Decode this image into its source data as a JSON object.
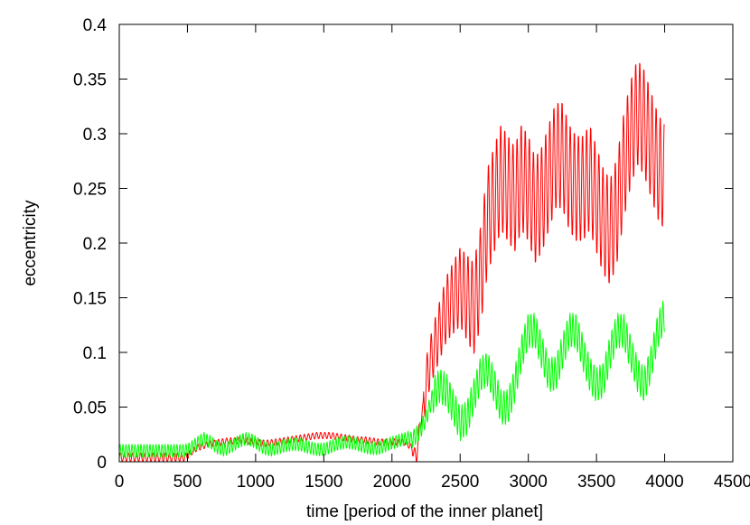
{
  "chart_data": {
    "type": "line",
    "xlabel": "time [period of the inner planet]",
    "ylabel": "eccentricity",
    "xlim": [
      0,
      4500
    ],
    "ylim": [
      0,
      0.4
    ],
    "x_ticks": [
      "0",
      "500",
      "1000",
      "1500",
      "2000",
      "2500",
      "3000",
      "3500",
      "4000",
      "4500"
    ],
    "y_ticks": [
      "0",
      "0.05",
      "0.1",
      "0.15",
      "0.2",
      "0.25",
      "0.3",
      "0.35",
      "0.4"
    ],
    "grid": false,
    "legend": "none",
    "series": [
      {
        "color": "#ff0000",
        "x": [
          0,
          250,
          490,
          520,
          560,
          600,
          650,
          700,
          750,
          800,
          850,
          900,
          950,
          1000,
          1050,
          1100,
          1150,
          1200,
          1250,
          1300,
          1350,
          1400,
          1450,
          1500,
          1550,
          1600,
          1650,
          1700,
          1750,
          1800,
          1850,
          1900,
          1950,
          2000,
          2050,
          2100,
          2150,
          2180,
          2200,
          2230,
          2260,
          2300,
          2350,
          2400,
          2450,
          2500,
          2550,
          2600,
          2650,
          2700,
          2750,
          2800,
          2850,
          2900,
          2950,
          3000,
          3050,
          3100,
          3150,
          3200,
          3250,
          3300,
          3350,
          3400,
          3450,
          3500,
          3550,
          3600,
          3650,
          3700,
          3750,
          3800,
          3850,
          3900,
          3950,
          4000
        ],
        "y": [
          0.004,
          0.004,
          0.004,
          0.008,
          0.012,
          0.014,
          0.016,
          0.017,
          0.018,
          0.019,
          0.019,
          0.02,
          0.019,
          0.018,
          0.017,
          0.017,
          0.018,
          0.019,
          0.02,
          0.021,
          0.022,
          0.023,
          0.024,
          0.024,
          0.024,
          0.023,
          0.022,
          0.021,
          0.02,
          0.02,
          0.019,
          0.018,
          0.018,
          0.018,
          0.018,
          0.018,
          0.012,
          0.003,
          0.03,
          0.05,
          0.08,
          0.1,
          0.12,
          0.14,
          0.15,
          0.16,
          0.15,
          0.14,
          0.17,
          0.22,
          0.24,
          0.26,
          0.25,
          0.24,
          0.26,
          0.25,
          0.23,
          0.24,
          0.26,
          0.28,
          0.28,
          0.26,
          0.25,
          0.25,
          0.26,
          0.24,
          0.22,
          0.21,
          0.23,
          0.27,
          0.3,
          0.32,
          0.31,
          0.29,
          0.27,
          0.26
        ]
      },
      {
        "color": "#00ff00",
        "x": [
          0,
          250,
          480,
          520,
          570,
          620,
          670,
          720,
          770,
          820,
          870,
          920,
          970,
          1020,
          1070,
          1120,
          1170,
          1220,
          1270,
          1320,
          1370,
          1420,
          1470,
          1520,
          1570,
          1620,
          1670,
          1720,
          1770,
          1820,
          1870,
          1920,
          1970,
          2020,
          2070,
          2120,
          2150,
          2200,
          2250,
          2300,
          2350,
          2400,
          2450,
          2500,
          2550,
          2600,
          2650,
          2700,
          2750,
          2800,
          2850,
          2900,
          2950,
          3000,
          3050,
          3100,
          3150,
          3200,
          3250,
          3300,
          3350,
          3400,
          3450,
          3500,
          3550,
          3600,
          3650,
          3700,
          3750,
          3800,
          3850,
          3900,
          3950,
          4000
        ],
        "y": [
          0.01,
          0.01,
          0.01,
          0.012,
          0.017,
          0.021,
          0.018,
          0.013,
          0.011,
          0.014,
          0.018,
          0.021,
          0.02,
          0.016,
          0.012,
          0.011,
          0.013,
          0.015,
          0.016,
          0.016,
          0.014,
          0.012,
          0.011,
          0.012,
          0.015,
          0.017,
          0.018,
          0.017,
          0.015,
          0.013,
          0.012,
          0.013,
          0.016,
          0.018,
          0.02,
          0.022,
          0.021,
          0.027,
          0.04,
          0.06,
          0.07,
          0.065,
          0.05,
          0.035,
          0.04,
          0.06,
          0.08,
          0.085,
          0.07,
          0.05,
          0.05,
          0.07,
          0.1,
          0.12,
          0.12,
          0.1,
          0.08,
          0.08,
          0.1,
          0.12,
          0.12,
          0.1,
          0.08,
          0.07,
          0.075,
          0.1,
          0.12,
          0.12,
          0.1,
          0.08,
          0.07,
          0.09,
          0.12,
          0.135
        ]
      }
    ]
  }
}
